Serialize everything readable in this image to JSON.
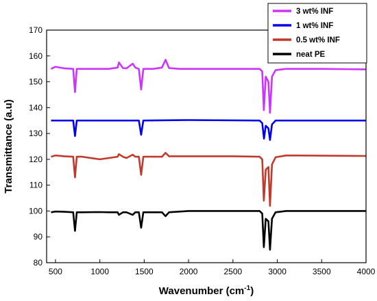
{
  "chart_data": {
    "type": "line",
    "xlabel": "Wavenumber (cm",
    "xlabel_sup": "-1",
    "xlabel_close": ")",
    "ylabel": "Transmittance (a.u)",
    "xlim": [
      400,
      4000
    ],
    "ylim": [
      80,
      170
    ],
    "xticks": [
      500,
      1000,
      1500,
      2000,
      2500,
      3000,
      3500,
      4000
    ],
    "yticks": [
      80,
      90,
      100,
      110,
      120,
      130,
      140,
      150,
      160,
      170
    ],
    "legend_position": "top-right",
    "series": [
      {
        "name": "3 wt% INF",
        "color": "#cc33ff",
        "x": [
          450,
          500,
          600,
          700,
          720,
          740,
          800,
          1000,
          1100,
          1200,
          1215,
          1260,
          1300,
          1370,
          1400,
          1440,
          1465,
          1490,
          1600,
          1700,
          1740,
          1780,
          1900,
          2500,
          2800,
          2830,
          2848,
          2870,
          2900,
          2918,
          2940,
          2980,
          3100,
          3500,
          4000
        ],
        "y": [
          155,
          155.8,
          155.2,
          155,
          146,
          155,
          155,
          155,
          155,
          155.5,
          157.5,
          155.3,
          155.2,
          157,
          155.5,
          155,
          147,
          155,
          155,
          155.5,
          158.5,
          155.3,
          155,
          155,
          155,
          154,
          139,
          152,
          150,
          138,
          152,
          154.5,
          155,
          155,
          154.8
        ]
      },
      {
        "name": "1 wt% INF",
        "color": "#0000ee",
        "x": [
          450,
          700,
          720,
          740,
          1440,
          1465,
          1490,
          2000,
          2800,
          2830,
          2850,
          2870,
          2900,
          2918,
          2940,
          2980,
          4000
        ],
        "y": [
          135,
          135,
          129,
          135,
          135,
          129.5,
          135,
          135.2,
          135,
          134,
          128,
          133,
          132,
          127.5,
          133.5,
          135,
          135
        ]
      },
      {
        "name": "0.5 wt% INF",
        "color": "#c0392b",
        "x": [
          450,
          500,
          600,
          700,
          720,
          740,
          800,
          1000,
          1100,
          1200,
          1215,
          1260,
          1300,
          1370,
          1400,
          1440,
          1465,
          1490,
          1600,
          1700,
          1740,
          1780,
          2000,
          2500,
          2800,
          2830,
          2848,
          2870,
          2900,
          2918,
          2940,
          2980,
          3100,
          4000
        ],
        "y": [
          121,
          121.5,
          121.2,
          121,
          113,
          121,
          121,
          120,
          120.5,
          121,
          122,
          121,
          120.5,
          121.8,
          121,
          121,
          114,
          121,
          121,
          121,
          122.5,
          121.2,
          121.2,
          121.2,
          121,
          120,
          104,
          116,
          117,
          102,
          118,
          120.8,
          121.5,
          121.3
        ]
      },
      {
        "name": "neat PE",
        "color": "#000000",
        "x": [
          450,
          500,
          600,
          700,
          720,
          740,
          800,
          1000,
          1100,
          1200,
          1215,
          1260,
          1300,
          1370,
          1400,
          1440,
          1465,
          1490,
          1600,
          1700,
          1740,
          1780,
          2000,
          2500,
          2800,
          2830,
          2848,
          2870,
          2900,
          2918,
          2940,
          2980,
          3100,
          4000
        ],
        "y": [
          99.5,
          99.8,
          99.7,
          99.5,
          92.3,
          99.5,
          99.5,
          99.6,
          99.5,
          99.5,
          98.5,
          99.5,
          99.5,
          98.5,
          99.5,
          99.5,
          93.5,
          99.5,
          99.5,
          99.5,
          98,
          99.5,
          100,
          100,
          100,
          99,
          86,
          97,
          96,
          85,
          97,
          99.5,
          100,
          100
        ]
      }
    ]
  }
}
